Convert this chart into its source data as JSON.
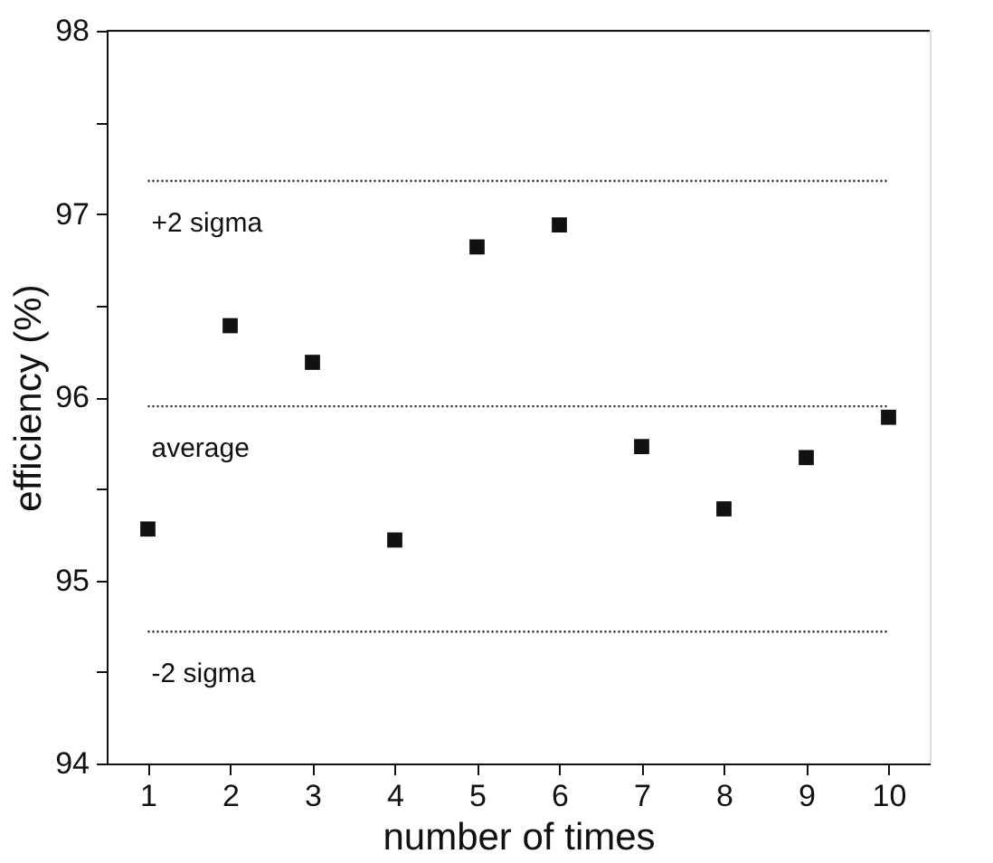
{
  "chart_data": {
    "type": "scatter",
    "xlabel": "number of times",
    "ylabel": "efficiency (%)",
    "x": [
      1,
      2,
      3,
      4,
      5,
      6,
      7,
      8,
      9,
      10
    ],
    "series": [
      {
        "color": "#111111",
        "values": [
          95.28,
          96.39,
          96.19,
          95.22,
          96.82,
          96.94,
          95.73,
          95.39,
          95.67,
          95.89
        ]
      }
    ],
    "marker": "square",
    "xlim": [
      0.5,
      10.5
    ],
    "xticks": [
      1,
      2,
      3,
      4,
      5,
      6,
      7,
      8,
      9,
      10
    ],
    "ylim": [
      94,
      98
    ],
    "yticks": [
      94,
      {
        "value": 94.5,
        "label": null
      },
      95,
      {
        "value": 95.5,
        "label": null
      },
      96,
      {
        "value": 96.5,
        "label": null
      },
      97,
      {
        "value": 97.5,
        "label": null
      },
      98
    ],
    "ref_lines": [
      {
        "axis": "y",
        "value": 97.18,
        "label": "+2 sigma",
        "line_style": "dotted",
        "color": "#222222"
      },
      {
        "axis": "y",
        "value": 95.95,
        "label": "average",
        "line_style": "dotted",
        "color": "#222222"
      },
      {
        "axis": "y",
        "value": 94.72,
        "label": "-2 sigma",
        "line_style": "dotted",
        "color": "#222222"
      }
    ]
  }
}
